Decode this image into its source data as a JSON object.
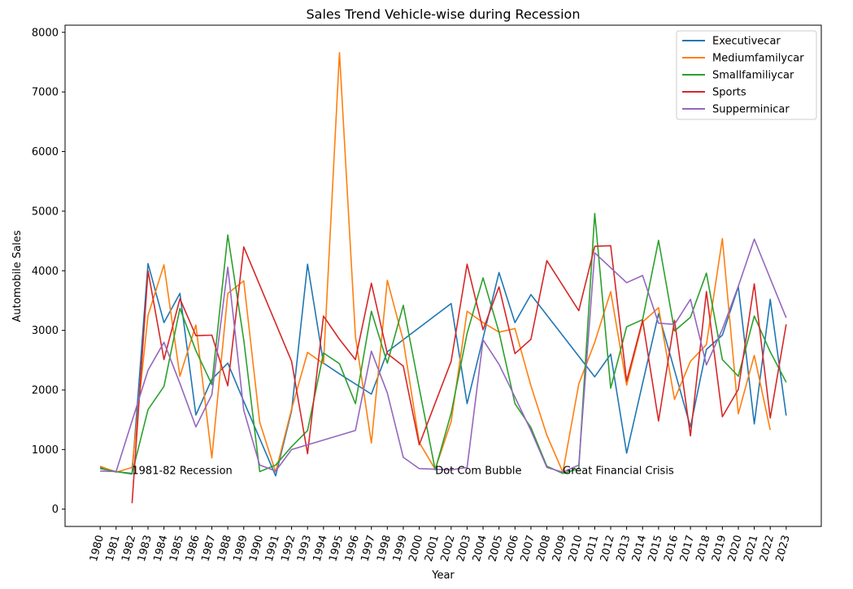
{
  "chart_data": {
    "type": "line",
    "title": "Sales Trend Vehicle-wise during Recession",
    "xlabel": "Year",
    "ylabel": "Automobile Sales",
    "ylim": [
      -290,
      8120
    ],
    "yticks": [
      0,
      1000,
      2000,
      3000,
      4000,
      5000,
      6000,
      7000,
      8000
    ],
    "x": [
      1980,
      1981,
      1982,
      1983,
      1984,
      1985,
      1986,
      1987,
      1988,
      1989,
      1990,
      1991,
      1992,
      1993,
      1994,
      1995,
      1996,
      1997,
      1998,
      1999,
      2000,
      2001,
      2002,
      2003,
      2004,
      2005,
      2006,
      2007,
      2008,
      2009,
      2010,
      2011,
      2012,
      2013,
      2014,
      2015,
      2016,
      2017,
      2018,
      2019,
      2020,
      2021,
      2022,
      2023
    ],
    "grid": false,
    "legend_position": "top-right",
    "series": [
      {
        "name": "Executivecar",
        "color": "#1f77b4",
        "points": [
          [
            1980,
            700
          ],
          [
            1981,
            630
          ],
          [
            1982,
            590
          ],
          [
            1983,
            4120
          ],
          [
            1984,
            3130
          ],
          [
            1985,
            3620
          ],
          [
            1986,
            1580
          ],
          [
            1987,
            2180
          ],
          [
            1988,
            2450
          ],
          [
            1989,
            1810
          ],
          [
            1991,
            560
          ],
          [
            1992,
            1650
          ],
          [
            1993,
            4110
          ],
          [
            1994,
            2450
          ],
          [
            1995,
            2270
          ],
          [
            1997,
            1930
          ],
          [
            1998,
            2640
          ],
          [
            2002,
            3450
          ],
          [
            2003,
            1770
          ],
          [
            2005,
            3970
          ],
          [
            2006,
            3130
          ],
          [
            2007,
            3600
          ],
          [
            2011,
            2220
          ],
          [
            2012,
            2600
          ],
          [
            2013,
            940
          ],
          [
            2015,
            3280
          ],
          [
            2017,
            1380
          ],
          [
            2018,
            2680
          ],
          [
            2019,
            2920
          ],
          [
            2020,
            3730
          ],
          [
            2021,
            1430
          ],
          [
            2022,
            3520
          ],
          [
            2023,
            1570
          ]
        ]
      },
      {
        "name": "Mediumfamilycar",
        "color": "#ff7f0e",
        "points": [
          [
            1980,
            720
          ],
          [
            1981,
            620
          ],
          [
            1982,
            700
          ],
          [
            1983,
            3250
          ],
          [
            1984,
            4100
          ],
          [
            1985,
            2230
          ],
          [
            1986,
            3090
          ],
          [
            1987,
            860
          ],
          [
            1988,
            3620
          ],
          [
            1989,
            3830
          ],
          [
            1990,
            1460
          ],
          [
            1991,
            620
          ],
          [
            1992,
            1680
          ],
          [
            1993,
            2630
          ],
          [
            1994,
            2440
          ],
          [
            1995,
            7660
          ],
          [
            1996,
            2900
          ],
          [
            1997,
            1110
          ],
          [
            1998,
            3840
          ],
          [
            1999,
            2830
          ],
          [
            2000,
            1120
          ],
          [
            2001,
            670
          ],
          [
            2002,
            1470
          ],
          [
            2003,
            3320
          ],
          [
            2004,
            3130
          ],
          [
            2005,
            2970
          ],
          [
            2006,
            3030
          ],
          [
            2007,
            2070
          ],
          [
            2008,
            1240
          ],
          [
            2009,
            620
          ],
          [
            2010,
            2100
          ],
          [
            2011,
            2800
          ],
          [
            2012,
            3650
          ],
          [
            2013,
            2080
          ],
          [
            2014,
            3140
          ],
          [
            2015,
            3380
          ],
          [
            2016,
            1840
          ],
          [
            2017,
            2480
          ],
          [
            2018,
            2760
          ],
          [
            2019,
            4540
          ],
          [
            2020,
            1600
          ],
          [
            2021,
            2580
          ],
          [
            2022,
            1330
          ]
        ]
      },
      {
        "name": "Smallfamiliycar",
        "color": "#2ca02c",
        "points": [
          [
            1980,
            680
          ],
          [
            1981,
            630
          ],
          [
            1982,
            600
          ],
          [
            1983,
            1670
          ],
          [
            1984,
            2060
          ],
          [
            1985,
            3370
          ],
          [
            1986,
            2660
          ],
          [
            1987,
            2090
          ],
          [
            1988,
            4600
          ],
          [
            1989,
            2840
          ],
          [
            1990,
            630
          ],
          [
            1991,
            740
          ],
          [
            1992,
            1050
          ],
          [
            1993,
            1320
          ],
          [
            1994,
            2620
          ],
          [
            1995,
            2440
          ],
          [
            1996,
            1770
          ],
          [
            1997,
            3320
          ],
          [
            1998,
            2450
          ],
          [
            1999,
            3420
          ],
          [
            2000,
            2030
          ],
          [
            2001,
            660
          ],
          [
            2002,
            1610
          ],
          [
            2003,
            2950
          ],
          [
            2004,
            3880
          ],
          [
            2005,
            2970
          ],
          [
            2006,
            1770
          ],
          [
            2007,
            1370
          ],
          [
            2008,
            720
          ],
          [
            2009,
            600
          ],
          [
            2010,
            680
          ],
          [
            2011,
            4960
          ],
          [
            2012,
            2030
          ],
          [
            2013,
            3060
          ],
          [
            2014,
            3180
          ],
          [
            2015,
            4510
          ],
          [
            2016,
            2990
          ],
          [
            2017,
            3220
          ],
          [
            2018,
            3960
          ],
          [
            2019,
            2510
          ],
          [
            2020,
            2230
          ],
          [
            2021,
            3240
          ],
          [
            2022,
            2640
          ],
          [
            2023,
            2130
          ]
        ]
      },
      {
        "name": "Sports",
        "color": "#d62728",
        "points": [
          [
            1982,
            100
          ],
          [
            1983,
            4000
          ],
          [
            1984,
            2510
          ],
          [
            1985,
            3530
          ],
          [
            1986,
            2910
          ],
          [
            1987,
            2920
          ],
          [
            1988,
            2070
          ],
          [
            1989,
            4400
          ],
          [
            1992,
            2480
          ],
          [
            1993,
            930
          ],
          [
            1994,
            3240
          ],
          [
            1995,
            2850
          ],
          [
            1996,
            2510
          ],
          [
            1997,
            3790
          ],
          [
            1998,
            2610
          ],
          [
            1999,
            2400
          ],
          [
            2000,
            1080
          ],
          [
            2002,
            2480
          ],
          [
            2003,
            4110
          ],
          [
            2004,
            3010
          ],
          [
            2005,
            3730
          ],
          [
            2006,
            2610
          ],
          [
            2007,
            2850
          ],
          [
            2008,
            4170
          ],
          [
            2010,
            3330
          ],
          [
            2011,
            4410
          ],
          [
            2012,
            4420
          ],
          [
            2013,
            2150
          ],
          [
            2014,
            3170
          ],
          [
            2015,
            1480
          ],
          [
            2016,
            3170
          ],
          [
            2017,
            1230
          ],
          [
            2018,
            3650
          ],
          [
            2019,
            1550
          ],
          [
            2020,
            2010
          ],
          [
            2021,
            3780
          ],
          [
            2022,
            1530
          ],
          [
            2023,
            3100
          ]
        ]
      },
      {
        "name": "Supperminicar",
        "color": "#9467bd",
        "points": [
          [
            1980,
            640
          ],
          [
            1981,
            630
          ],
          [
            1983,
            2330
          ],
          [
            1984,
            2800
          ],
          [
            1985,
            2110
          ],
          [
            1986,
            1380
          ],
          [
            1987,
            1920
          ],
          [
            1988,
            4060
          ],
          [
            1989,
            1660
          ],
          [
            1990,
            740
          ],
          [
            1991,
            640
          ],
          [
            1992,
            1000
          ],
          [
            1996,
            1320
          ],
          [
            1997,
            2650
          ],
          [
            1998,
            1950
          ],
          [
            1999,
            870
          ],
          [
            2000,
            680
          ],
          [
            2002,
            660
          ],
          [
            2003,
            700
          ],
          [
            2004,
            2840
          ],
          [
            2005,
            2430
          ],
          [
            2006,
            1880
          ],
          [
            2007,
            1320
          ],
          [
            2008,
            700
          ],
          [
            2009,
            620
          ],
          [
            2010,
            740
          ],
          [
            2011,
            4300
          ],
          [
            2013,
            3800
          ],
          [
            2014,
            3920
          ],
          [
            2015,
            3120
          ],
          [
            2016,
            3100
          ],
          [
            2017,
            3520
          ],
          [
            2018,
            2420
          ],
          [
            2019,
            3020
          ],
          [
            2020,
            3740
          ],
          [
            2021,
            4530
          ],
          [
            2023,
            3210
          ]
        ]
      }
    ],
    "annotations": [
      {
        "text": "1981-82 Recession",
        "x": 1982,
        "y": 650
      },
      {
        "text": "Dot Com Bubble",
        "x": 2001,
        "y": 650
      },
      {
        "text": "Great Financial Crisis",
        "x": 2009,
        "y": 650
      }
    ]
  }
}
